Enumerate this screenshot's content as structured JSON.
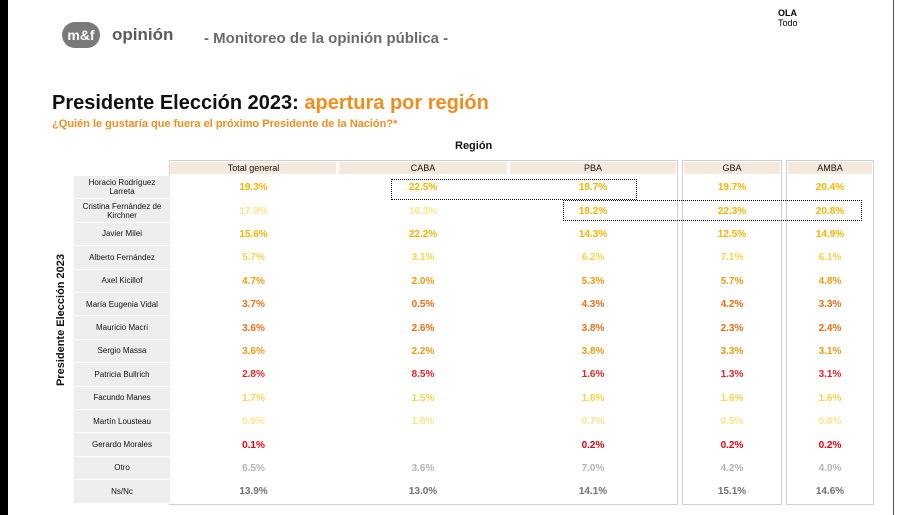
{
  "header": {
    "logo_badge": "m&f",
    "logo_word": "opinión",
    "subtitle": "- Monitoreo de la opinión pública -",
    "ola_label": "OLA",
    "ola_value": "Todo"
  },
  "title": {
    "part1": "Presidente Elección 2023:",
    "part2": "apertura por región"
  },
  "question": "¿Quién le gustaría que fuera el próximo Presidente de la Nación?*",
  "region_label": "Región",
  "side_label": "Presidente Elección 2023",
  "columns": [
    "Total general",
    "CABA",
    "PBA",
    "GBA",
    "AMBA"
  ],
  "rows": [
    {
      "label": "Horacio Rodríguez Larreta",
      "values": [
        "19.3%",
        "22.5%",
        "18.7%",
        "19.7%",
        "20.4%"
      ]
    },
    {
      "label": "Cristina Fernández de Kirchner",
      "values": [
        "17.9%",
        "16.3%",
        "18.2%",
        "22.3%",
        "20.8%"
      ]
    },
    {
      "label": "Javier Milei",
      "values": [
        "15.6%",
        "22.2%",
        "14.3%",
        "12.5%",
        "14.9%"
      ]
    },
    {
      "label": "Alberto Fernández",
      "values": [
        "5.7%",
        "3.1%",
        "6.2%",
        "7.1%",
        "6.1%"
      ]
    },
    {
      "label": "Axel Kicillof",
      "values": [
        "4.7%",
        "2.0%",
        "5.3%",
        "5.7%",
        "4.8%"
      ]
    },
    {
      "label": "María Eugenia Vidal",
      "values": [
        "3.7%",
        "0.5%",
        "4.3%",
        "4.2%",
        "3.3%"
      ]
    },
    {
      "label": "Mauricio Macri",
      "values": [
        "3.6%",
        "2.6%",
        "3.8%",
        "2.3%",
        "2.4%"
      ]
    },
    {
      "label": "Sergio Massa",
      "values": [
        "3.6%",
        "2.2%",
        "3.8%",
        "3.3%",
        "3.1%"
      ]
    },
    {
      "label": "Patricia Bullrich",
      "values": [
        "2.8%",
        "8.5%",
        "1.6%",
        "1.3%",
        "3.1%"
      ]
    },
    {
      "label": "Facundo Manes",
      "values": [
        "1.7%",
        "1.5%",
        "1.8%",
        "1.6%",
        "1.6%"
      ]
    },
    {
      "label": "Martín Lousteau",
      "values": [
        "0.9%",
        "1.8%",
        "0.7%",
        "0.5%",
        "0.8%"
      ]
    },
    {
      "label": "Gerardo Morales",
      "values": [
        "0.1%",
        "",
        "0.2%",
        "0.2%",
        "0.2%"
      ]
    },
    {
      "label": "Otro",
      "values": [
        "6.5%",
        "3.6%",
        "7.0%",
        "4.2%",
        "4.0%"
      ]
    },
    {
      "label": "Ns/Nc",
      "values": [
        "13.9%",
        "13.0%",
        "14.1%",
        "15.1%",
        "14.6%"
      ]
    }
  ],
  "colors": [
    [
      "#f5b400",
      "#f5b400",
      "#f5b400",
      "#f5b400",
      "#f5b400"
    ],
    [
      "#fde48a",
      "#fde48a",
      "#f5b400",
      "#f5b400",
      "#f5b400"
    ],
    [
      "#f5b400",
      "#f5b400",
      "#f5b400",
      "#f5b400",
      "#f5b400"
    ],
    [
      "#f9d34c",
      "#f9d34c",
      "#f9d34c",
      "#f9d34c",
      "#f9d34c"
    ],
    [
      "#f29a12",
      "#f29a12",
      "#f29a12",
      "#f29a12",
      "#f29a12"
    ],
    [
      "#ee6d12",
      "#ee6d12",
      "#ee6d12",
      "#ee6d12",
      "#ee6d12"
    ],
    [
      "#ee6d12",
      "#ee6d12",
      "#ee6d12",
      "#ee6d12",
      "#ee6d12"
    ],
    [
      "#f29a12",
      "#f29a12",
      "#f29a12",
      "#f29a12",
      "#f29a12"
    ],
    [
      "#e8262a",
      "#e8262a",
      "#e8262a",
      "#e8262a",
      "#e8262a"
    ],
    [
      "#f9d34c",
      "#f9d34c",
      "#f9d34c",
      "#f9d34c",
      "#f9d34c"
    ],
    [
      "#fde48a",
      "#fde48a",
      "#fde48a",
      "#fde48a",
      "#fde48a"
    ],
    [
      "#e8000a",
      "#e8000a",
      "#e8000a",
      "#e8000a",
      "#e8000a"
    ],
    [
      "#b4b4b4",
      "#b4b4b4",
      "#b4b4b4",
      "#b4b4b4",
      "#b4b4b4"
    ],
    [
      "#707070",
      "#707070",
      "#707070",
      "#707070",
      "#707070"
    ]
  ],
  "accent_color": "#f28c1e"
}
